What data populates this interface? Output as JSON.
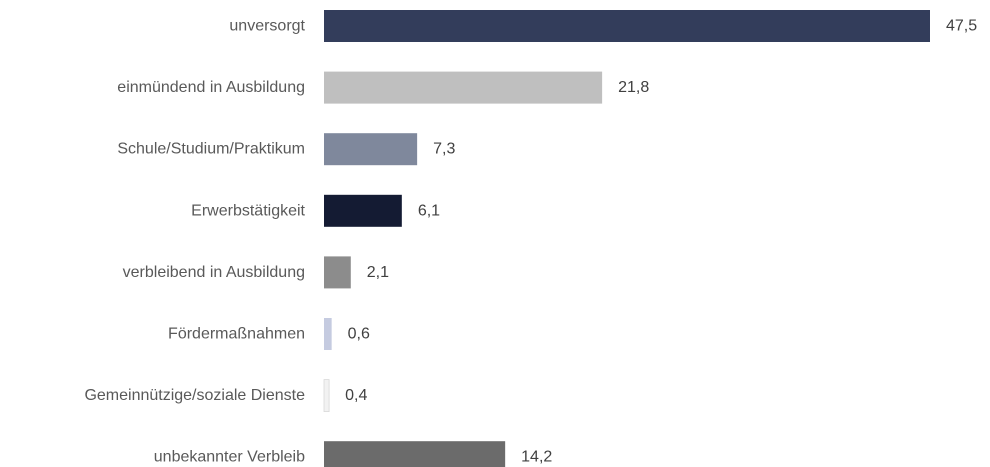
{
  "chart_data": {
    "type": "bar",
    "orientation": "horizontal",
    "categories": [
      "unversorgt",
      "einmündend in Ausbildung",
      "Schule/Studium/Praktikum",
      "Erwerbstätigkeit",
      "verbleibend in Ausbildung",
      "Fördermaßnahmen",
      "Gemeinnützige/soziale Dienste",
      "unbekannter Verbleib"
    ],
    "values": [
      47.5,
      21.8,
      7.3,
      6.1,
      2.1,
      0.6,
      0.4,
      14.2
    ],
    "value_labels": [
      "47,5",
      "21,8",
      "7,3",
      "6,1",
      "2,1",
      "0,6",
      "0,4",
      "14,2"
    ],
    "colors": [
      "#333d5b",
      "#bfbfbf",
      "#7f889c",
      "#141b33",
      "#8c8c8c",
      "#c5cbe0",
      "#f2f2f2",
      "#6b6b6b"
    ],
    "title": "",
    "xlabel": "",
    "ylabel": "",
    "xlim": [
      0,
      47.5
    ],
    "grid": false,
    "legend": "none"
  }
}
